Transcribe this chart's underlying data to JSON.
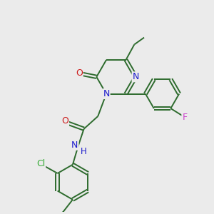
{
  "bg_color": "#ebebeb",
  "bond_color": "#2d6b2d",
  "atom_colors": {
    "N": "#1a1acc",
    "O": "#cc1a1a",
    "Cl": "#33aa33",
    "F": "#cc44cc",
    "H": "#1a1acc",
    "C": "#2d6b2d"
  },
  "figsize": [
    3.0,
    3.0
  ],
  "dpi": 100
}
